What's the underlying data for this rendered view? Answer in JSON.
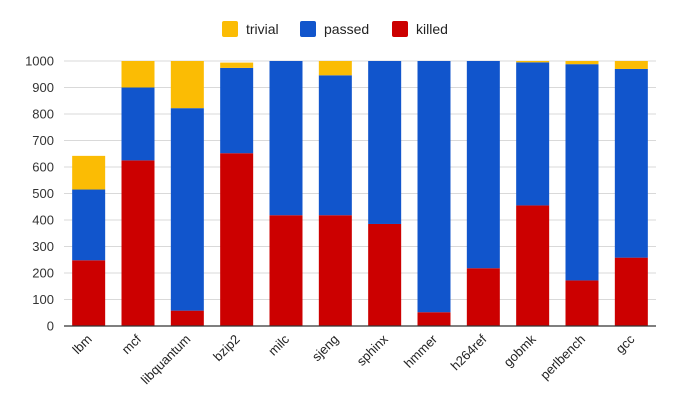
{
  "colors": {
    "trivial": "#fbbc04",
    "passed": "#1155cc",
    "killed": "#cc0000",
    "grid": "#d9d9d9",
    "axis": "#333333"
  },
  "chart_data": {
    "type": "bar",
    "stacked": true,
    "title": "",
    "xlabel": "",
    "ylabel": "",
    "ylim": [
      0,
      1000
    ],
    "yticks": [
      0,
      100,
      200,
      300,
      400,
      500,
      600,
      700,
      800,
      900,
      1000
    ],
    "grid": true,
    "legend_position": "top-center",
    "categories": [
      "lbm",
      "mcf",
      "libquantum",
      "bzip2",
      "milc",
      "sjeng",
      "sphinx",
      "hmmer",
      "h264ref",
      "gobmk",
      "perlbench",
      "gcc"
    ],
    "series": [
      {
        "name": "killed",
        "values": [
          248,
          625,
          58,
          652,
          418,
          418,
          385,
          52,
          218,
          455,
          172,
          258
        ]
      },
      {
        "name": "passed",
        "values": [
          267,
          275,
          764,
          322,
          582,
          528,
          615,
          948,
          782,
          540,
          816,
          712
        ]
      },
      {
        "name": "trivial",
        "values": [
          127,
          100,
          178,
          20,
          0,
          54,
          0,
          0,
          0,
          5,
          12,
          30
        ]
      }
    ]
  },
  "legend": [
    {
      "label": "trivial",
      "color_key": "trivial"
    },
    {
      "label": "passed",
      "color_key": "passed"
    },
    {
      "label": "killed",
      "color_key": "killed"
    }
  ]
}
